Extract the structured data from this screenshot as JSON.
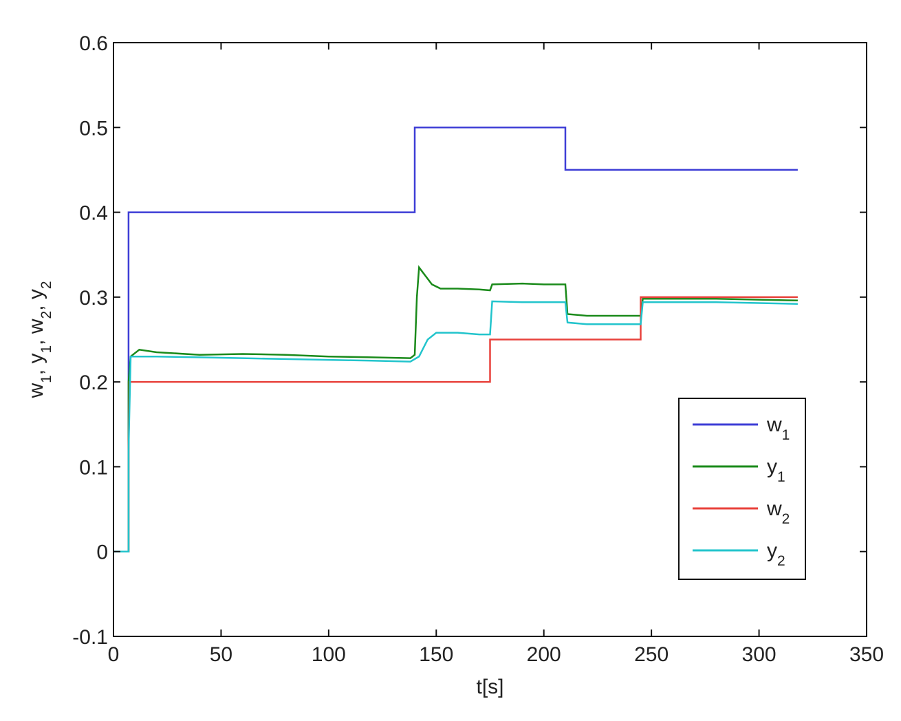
{
  "chart_data": {
    "type": "line",
    "title": "",
    "xlabel": "t[s]",
    "ylabel": "w1, y1, w2, y2",
    "xlim": [
      0,
      350
    ],
    "ylim": [
      -0.1,
      0.6
    ],
    "xticks": [
      0,
      50,
      100,
      150,
      200,
      250,
      300,
      350
    ],
    "yticks": [
      -0.1,
      0,
      0.1,
      0.2,
      0.3,
      0.4,
      0.5,
      0.6
    ],
    "xtick_labels": [
      "0",
      "50",
      "100",
      "150",
      "200",
      "250",
      "300",
      "350"
    ],
    "ytick_labels": [
      "-0.1",
      "0",
      "0.1",
      "0.2",
      "0.3",
      "0.4",
      "0.5",
      "0.6"
    ],
    "grid": false,
    "legend_position": "lower-right",
    "series": [
      {
        "name": "w1",
        "label_main": "w",
        "label_sub": "1",
        "color": "#3d3dd6",
        "points": [
          [
            0,
            0
          ],
          [
            7,
            0
          ],
          [
            7,
            0.4
          ],
          [
            140,
            0.4
          ],
          [
            140,
            0.5
          ],
          [
            210,
            0.5
          ],
          [
            210,
            0.45
          ],
          [
            318,
            0.45
          ]
        ]
      },
      {
        "name": "y1",
        "label_main": "y",
        "label_sub": "1",
        "color": "#1a8a1a",
        "points": [
          [
            0,
            0
          ],
          [
            7,
            0
          ],
          [
            7,
            0.2
          ],
          [
            8,
            0.23
          ],
          [
            12,
            0.238
          ],
          [
            20,
            0.235
          ],
          [
            40,
            0.232
          ],
          [
            60,
            0.233
          ],
          [
            80,
            0.232
          ],
          [
            100,
            0.23
          ],
          [
            120,
            0.229
          ],
          [
            138,
            0.228
          ],
          [
            140,
            0.232
          ],
          [
            141,
            0.3
          ],
          [
            142,
            0.335
          ],
          [
            145,
            0.325
          ],
          [
            148,
            0.315
          ],
          [
            152,
            0.31
          ],
          [
            160,
            0.31
          ],
          [
            170,
            0.309
          ],
          [
            175,
            0.308
          ],
          [
            176,
            0.315
          ],
          [
            190,
            0.316
          ],
          [
            200,
            0.315
          ],
          [
            210,
            0.315
          ],
          [
            211,
            0.28
          ],
          [
            220,
            0.278
          ],
          [
            235,
            0.278
          ],
          [
            245,
            0.278
          ],
          [
            246,
            0.298
          ],
          [
            260,
            0.298
          ],
          [
            280,
            0.298
          ],
          [
            300,
            0.297
          ],
          [
            318,
            0.296
          ]
        ]
      },
      {
        "name": "w2",
        "label_main": "w",
        "label_sub": "2",
        "color": "#e8413b",
        "points": [
          [
            0,
            0
          ],
          [
            7,
            0
          ],
          [
            7,
            0.125
          ],
          [
            7.5,
            0.2
          ],
          [
            175,
            0.2
          ],
          [
            175,
            0.25
          ],
          [
            245,
            0.25
          ],
          [
            245,
            0.3
          ],
          [
            318,
            0.3
          ]
        ]
      },
      {
        "name": "y2",
        "label_main": "y",
        "label_sub": "2",
        "color": "#22c4cc",
        "points": [
          [
            0,
            0
          ],
          [
            7,
            0
          ],
          [
            7,
            0.12
          ],
          [
            8,
            0.23
          ],
          [
            20,
            0.23
          ],
          [
            40,
            0.229
          ],
          [
            60,
            0.228
          ],
          [
            80,
            0.227
          ],
          [
            100,
            0.226
          ],
          [
            120,
            0.225
          ],
          [
            138,
            0.224
          ],
          [
            142,
            0.23
          ],
          [
            146,
            0.25
          ],
          [
            150,
            0.258
          ],
          [
            160,
            0.258
          ],
          [
            170,
            0.256
          ],
          [
            175,
            0.256
          ],
          [
            176,
            0.295
          ],
          [
            190,
            0.294
          ],
          [
            200,
            0.294
          ],
          [
            210,
            0.294
          ],
          [
            211,
            0.27
          ],
          [
            220,
            0.268
          ],
          [
            235,
            0.268
          ],
          [
            245,
            0.268
          ],
          [
            246,
            0.294
          ],
          [
            260,
            0.294
          ],
          [
            280,
            0.294
          ],
          [
            300,
            0.293
          ],
          [
            318,
            0.292
          ]
        ]
      }
    ]
  }
}
